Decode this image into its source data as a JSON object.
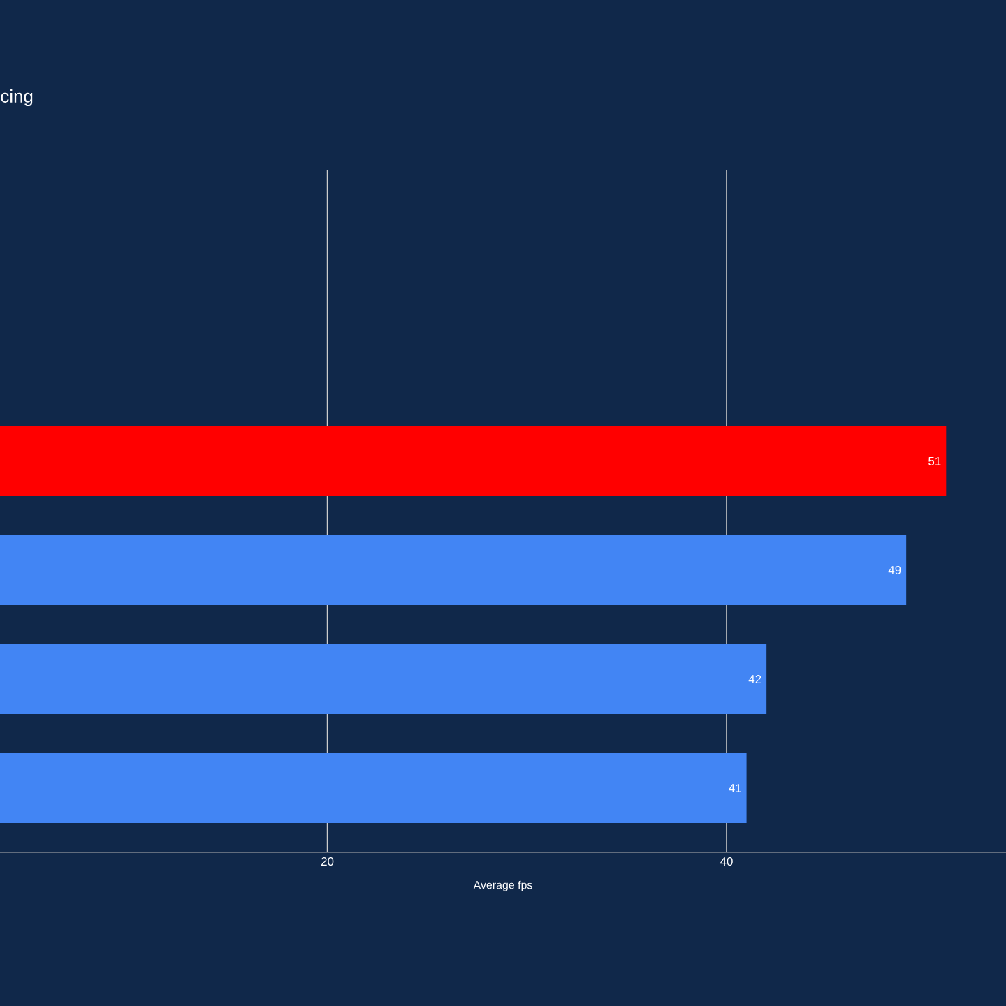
{
  "chart_data": {
    "type": "bar",
    "orientation": "horizontal",
    "title": "cing",
    "xlabel": "Average fps",
    "categories": [
      null,
      null,
      null,
      null,
      null,
      null
    ],
    "values": [
      null,
      null,
      51,
      49,
      42,
      41
    ],
    "colors": [
      "#4285f4",
      "#4285f4",
      "#ff0000",
      "#4285f4",
      "#4285f4",
      "#4285f4"
    ],
    "value_labels": [
      null,
      null,
      "51",
      "49",
      "42",
      "41"
    ],
    "xlim": [
      3.6,
      54
    ],
    "xticks": [
      20,
      40
    ],
    "grid": "x"
  }
}
